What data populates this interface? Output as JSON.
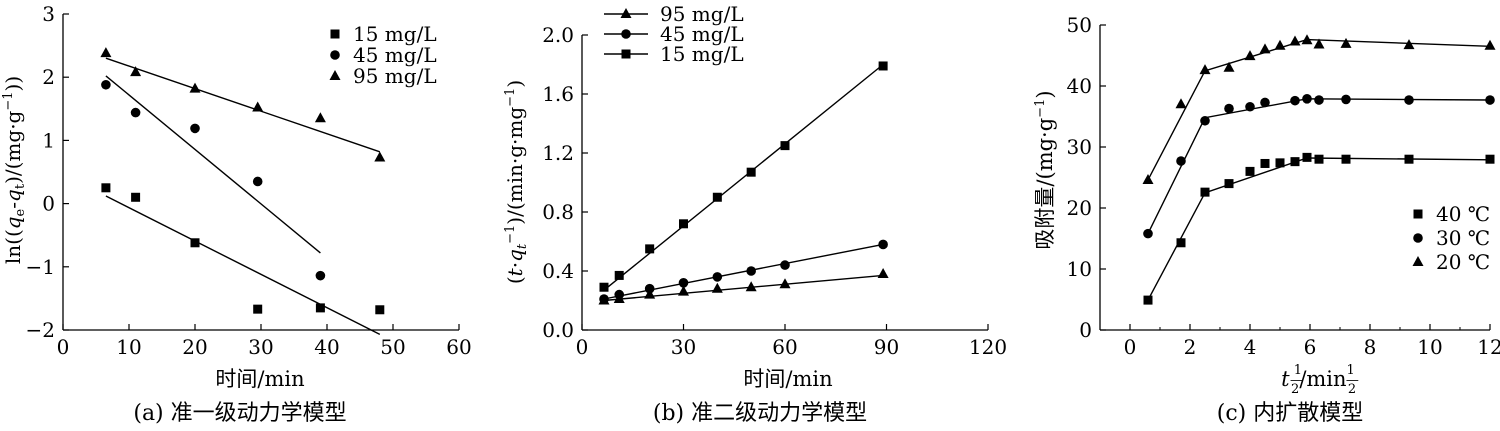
{
  "chart_data": [
    {
      "type": "scatter",
      "caption": "(a) 准一级动力学模型",
      "xlabel": "时间/min",
      "ylabel": "ln((q_e-q_t)/(mg·g⁻¹))",
      "xlim": [
        0,
        60
      ],
      "ylim": [
        -2,
        3
      ],
      "xticks": [
        "0",
        "10",
        "20",
        "30",
        "40",
        "50",
        "60"
      ],
      "yticks": [
        "−2",
        "−1",
        "0",
        "1",
        "2",
        "3"
      ],
      "legend_position": "top-right",
      "series": [
        {
          "name": "15 mg/L",
          "marker": "square",
          "points": [
            [
              6.5,
              0.25
            ],
            [
              11,
              0.1
            ],
            [
              20,
              -0.62
            ],
            [
              29.5,
              -1.67
            ],
            [
              39,
              -1.65
            ],
            [
              48,
              -1.68
            ]
          ],
          "fit": [
            [
              6.5,
              0.12
            ],
            [
              48,
              -2.07
            ]
          ]
        },
        {
          "name": "45 mg/L",
          "marker": "circle",
          "points": [
            [
              6.5,
              1.88
            ],
            [
              11,
              1.44
            ],
            [
              20,
              1.19
            ],
            [
              29.5,
              0.35
            ],
            [
              39,
              -1.14
            ]
          ],
          "fit": [
            [
              6.5,
              2.02
            ],
            [
              39,
              -0.78
            ]
          ]
        },
        {
          "name": "95 mg/L",
          "marker": "triangle",
          "points": [
            [
              6.5,
              2.38
            ],
            [
              11,
              2.08
            ],
            [
              20,
              1.82
            ],
            [
              29.5,
              1.52
            ],
            [
              39,
              1.35
            ],
            [
              48,
              0.73
            ]
          ],
          "fit": [
            [
              6.5,
              2.3
            ],
            [
              48,
              0.82
            ]
          ]
        }
      ]
    },
    {
      "type": "scatter",
      "caption": "(b) 准二级动力学模型",
      "xlabel": "时间/min",
      "ylabel": "(t·q_t⁻¹)/(min·g·mg⁻¹)",
      "xlim": [
        0,
        120
      ],
      "ylim": [
        0,
        2.0
      ],
      "xticks": [
        "0",
        "30",
        "60",
        "90",
        "120"
      ],
      "yticks": [
        "0.0",
        "0.4",
        "0.8",
        "1.2",
        "1.6",
        "2.0"
      ],
      "legend_position": "top-left",
      "series": [
        {
          "name": "95 mg/L",
          "marker": "triangle",
          "points": [
            [
              6.5,
              0.2
            ],
            [
              11,
              0.21
            ],
            [
              20,
              0.24
            ],
            [
              30,
              0.26
            ],
            [
              40,
              0.28
            ],
            [
              50,
              0.29
            ],
            [
              60,
              0.31
            ],
            [
              89,
              0.38
            ]
          ],
          "fit": [
            [
              6.5,
              0.2
            ],
            [
              89,
              0.37
            ]
          ]
        },
        {
          "name": "45 mg/L",
          "marker": "circle",
          "points": [
            [
              6.5,
              0.21
            ],
            [
              11,
              0.24
            ],
            [
              20,
              0.28
            ],
            [
              30,
              0.32
            ],
            [
              40,
              0.36
            ],
            [
              50,
              0.4
            ],
            [
              60,
              0.44
            ],
            [
              89,
              0.58
            ]
          ],
          "fit": [
            [
              6.5,
              0.21
            ],
            [
              89,
              0.58
            ]
          ]
        },
        {
          "name": "15 mg/L",
          "marker": "square",
          "points": [
            [
              6.5,
              0.29
            ],
            [
              11,
              0.37
            ],
            [
              20,
              0.55
            ],
            [
              30,
              0.72
            ],
            [
              40,
              0.9
            ],
            [
              50,
              1.07
            ],
            [
              60,
              1.25
            ],
            [
              89,
              1.79
            ]
          ],
          "fit": [
            [
              6.5,
              0.27
            ],
            [
              89,
              1.8
            ]
          ]
        }
      ]
    },
    {
      "type": "line",
      "caption": "(c) 内扩散模型",
      "xlabel": "t^(1/2)/min^(1/2)",
      "ylabel": "吸附量/(mg·g⁻¹)",
      "xlim": [
        -1,
        12
      ],
      "ylim": [
        0,
        50
      ],
      "xticks": [
        "0",
        "2",
        "4",
        "6",
        "8",
        "10",
        "12"
      ],
      "yticks": [
        "0",
        "10",
        "20",
        "30",
        "40",
        "50"
      ],
      "legend_position": "right",
      "series": [
        {
          "name": "40 ℃",
          "marker": "square",
          "points": [
            [
              0.6,
              4.9
            ],
            [
              1.7,
              14.3
            ],
            [
              2.5,
              22.6
            ],
            [
              3.3,
              24.0
            ],
            [
              4.0,
              26.0
            ],
            [
              4.5,
              27.3
            ],
            [
              5.0,
              27.4
            ],
            [
              5.5,
              27.6
            ],
            [
              5.9,
              28.3
            ],
            [
              6.3,
              28.0
            ],
            [
              7.2,
              28.0
            ],
            [
              9.3,
              28.0
            ],
            [
              12,
              28.0
            ]
          ],
          "fit": [
            [
              0.6,
              4.9
            ],
            [
              2.5,
              22.5
            ],
            [
              5.9,
              28.2
            ],
            [
              12,
              27.9
            ]
          ]
        },
        {
          "name": "30 ℃",
          "marker": "circle",
          "points": [
            [
              0.6,
              15.8
            ],
            [
              1.7,
              27.7
            ],
            [
              2.5,
              34.3
            ],
            [
              3.3,
              36.3
            ],
            [
              4.0,
              36.6
            ],
            [
              4.5,
              37.3
            ],
            [
              5.5,
              37.6
            ],
            [
              5.9,
              37.9
            ],
            [
              6.3,
              37.7
            ],
            [
              7.2,
              37.8
            ],
            [
              9.3,
              37.7
            ],
            [
              12,
              37.7
            ]
          ],
          "fit": [
            [
              0.6,
              15.8
            ],
            [
              2.5,
              34.8
            ],
            [
              5.9,
              37.9
            ],
            [
              12,
              37.7
            ]
          ]
        },
        {
          "name": "20 ℃",
          "marker": "triangle",
          "points": [
            [
              0.6,
              24.6
            ],
            [
              1.7,
              37.0
            ],
            [
              2.5,
              42.6
            ],
            [
              3.3,
              43.0
            ],
            [
              4.0,
              44.9
            ],
            [
              4.5,
              46.0
            ],
            [
              5.0,
              46.6
            ],
            [
              5.5,
              47.3
            ],
            [
              5.9,
              47.5
            ],
            [
              6.3,
              46.8
            ],
            [
              7.2,
              46.9
            ],
            [
              9.3,
              46.7
            ],
            [
              12,
              46.6
            ]
          ],
          "fit": [
            [
              0.6,
              24.6
            ],
            [
              2.5,
              42.5
            ],
            [
              5.9,
              47.6
            ],
            [
              12,
              46.5
            ]
          ]
        }
      ]
    }
  ]
}
